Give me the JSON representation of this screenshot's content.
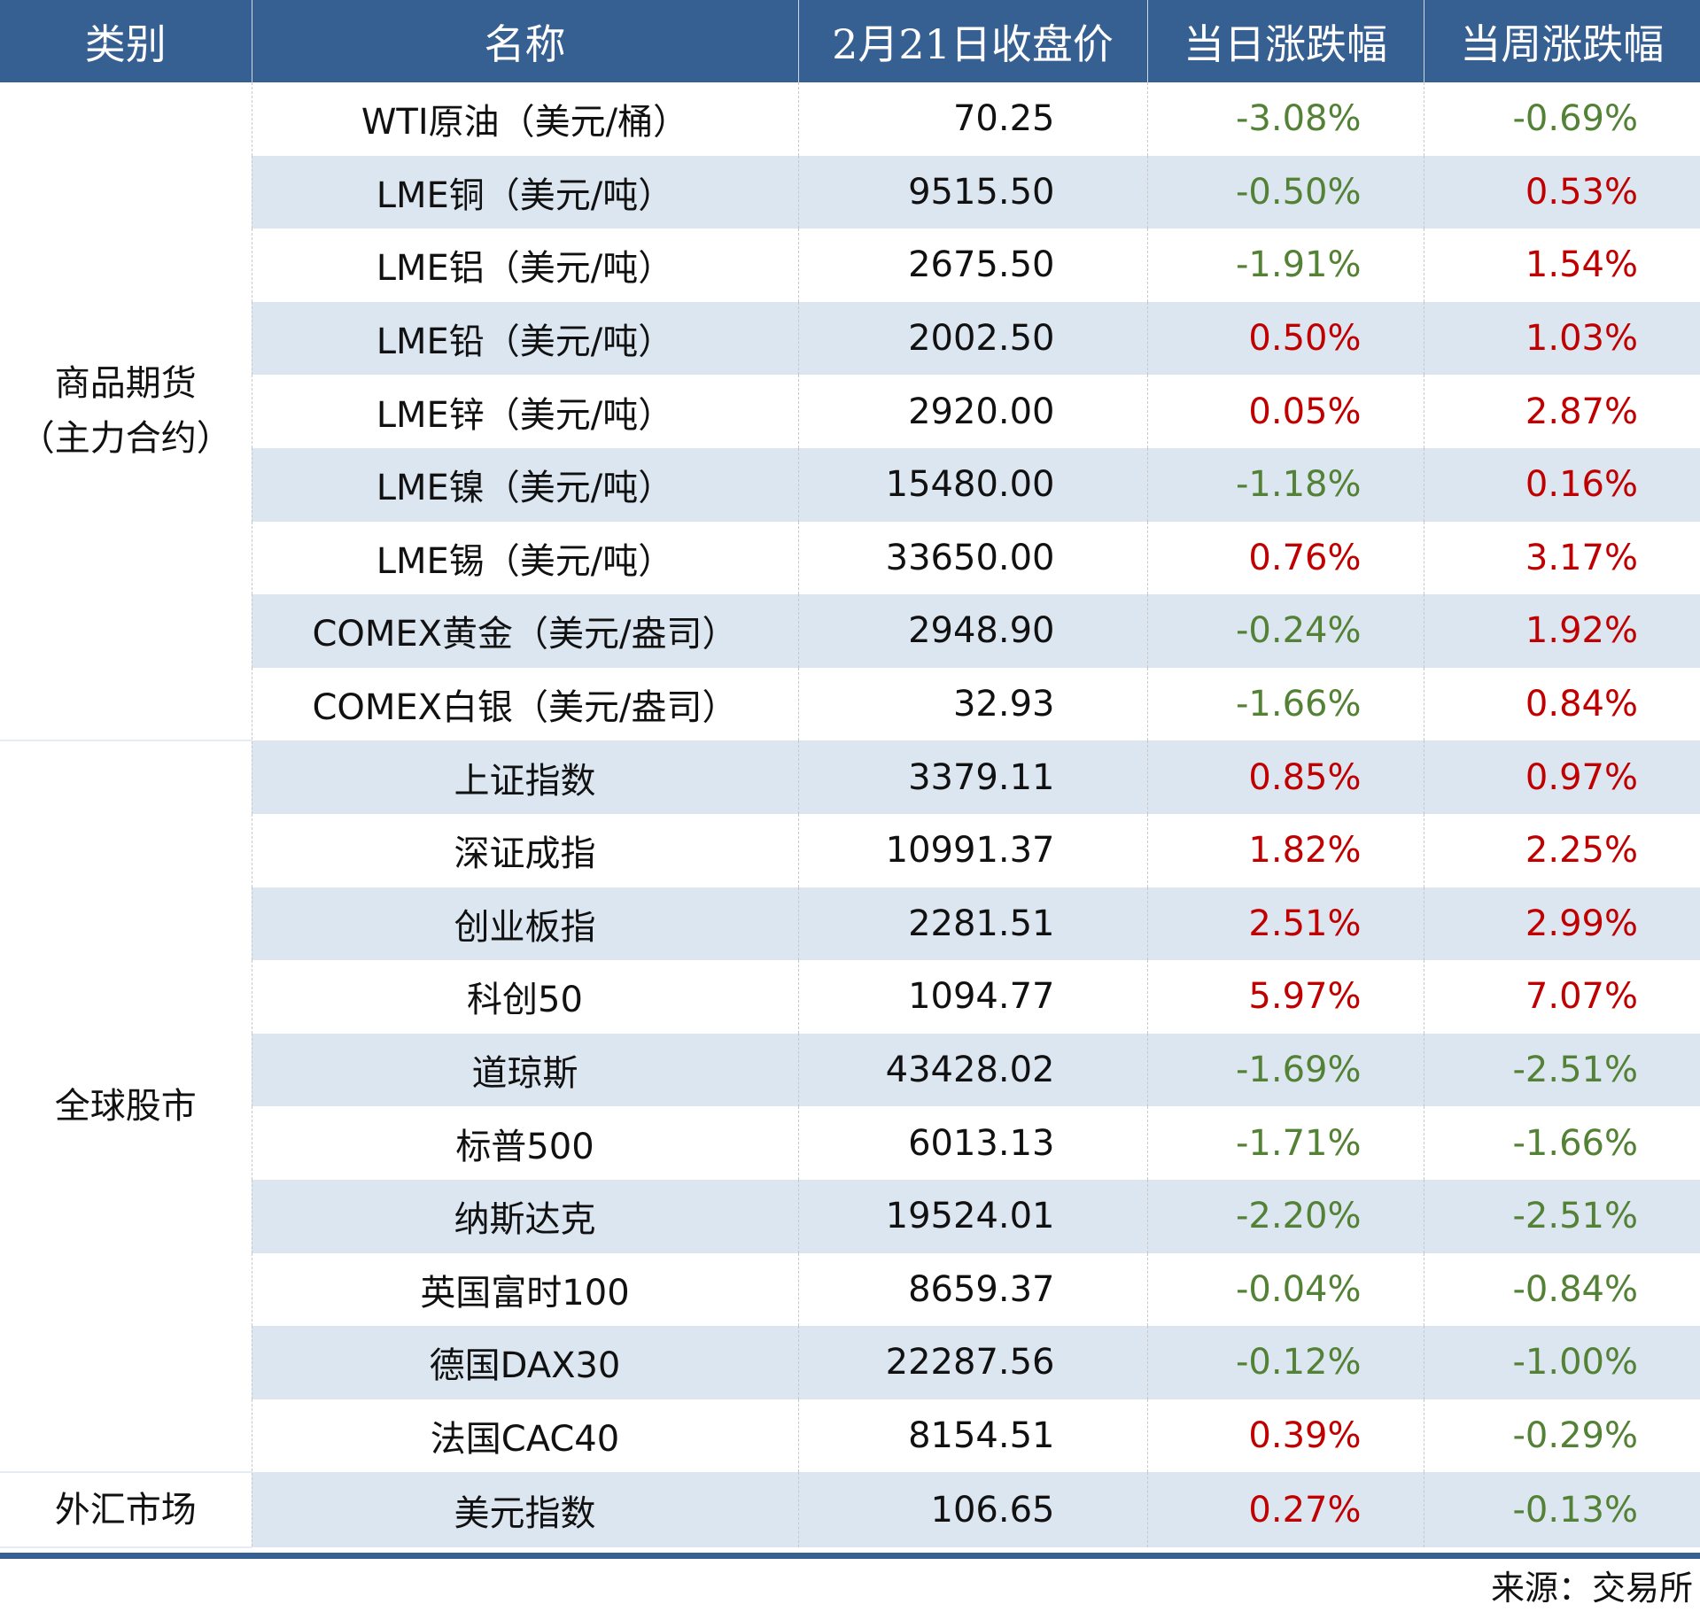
{
  "header": [
    "类别",
    "名称",
    "2月21日收盘价",
    "当日涨跌幅",
    "当周涨跌幅"
  ],
  "colors": {
    "header_bg": "#376092",
    "up": "#c00000",
    "down": "#538135",
    "stripe": "#dce6f0"
  },
  "groups": [
    {
      "category": [
        "商品期货",
        "（主力合约）"
      ],
      "rows": [
        [
          "WTI原油（美元/桶）",
          "70.25",
          "-3.08%",
          "-0.69%"
        ],
        [
          "LME铜（美元/吨）",
          "9515.50",
          "-0.50%",
          "0.53%"
        ],
        [
          "LME铝（美元/吨）",
          "2675.50",
          "-1.91%",
          "1.54%"
        ],
        [
          "LME铅（美元/吨）",
          "2002.50",
          "0.50%",
          "1.03%"
        ],
        [
          "LME锌（美元/吨）",
          "2920.00",
          "0.05%",
          "2.87%"
        ],
        [
          "LME镍（美元/吨）",
          "15480.00",
          "-1.18%",
          "0.16%"
        ],
        [
          "LME锡（美元/吨）",
          "33650.00",
          "0.76%",
          "3.17%"
        ],
        [
          "COMEX黄金（美元/盎司）",
          "2948.90",
          "-0.24%",
          "1.92%"
        ],
        [
          "COMEX白银（美元/盎司）",
          "32.93",
          "-1.66%",
          "0.84%"
        ]
      ]
    },
    {
      "category": [
        "全球股市"
      ],
      "rows": [
        [
          "上证指数",
          "3379.11",
          "0.85%",
          "0.97%"
        ],
        [
          "深证成指",
          "10991.37",
          "1.82%",
          "2.25%"
        ],
        [
          "创业板指",
          "2281.51",
          "2.51%",
          "2.99%"
        ],
        [
          "科创50",
          "1094.77",
          "5.97%",
          "7.07%"
        ],
        [
          "道琼斯",
          "43428.02",
          "-1.69%",
          "-2.51%"
        ],
        [
          "标普500",
          "6013.13",
          "-1.71%",
          "-1.66%"
        ],
        [
          "纳斯达克",
          "19524.01",
          "-2.20%",
          "-2.51%"
        ],
        [
          "英国富时100",
          "8659.37",
          "-0.04%",
          "-0.84%"
        ],
        [
          "德国DAX30",
          "22287.56",
          "-0.12%",
          "-1.00%"
        ],
        [
          "法国CAC40",
          "8154.51",
          "0.39%",
          "-0.29%"
        ]
      ]
    },
    {
      "category": [
        "外汇市场"
      ],
      "rows": [
        [
          "美元指数",
          "106.65",
          "0.27%",
          "-0.13%"
        ]
      ]
    }
  ],
  "source": "来源：交易所"
}
